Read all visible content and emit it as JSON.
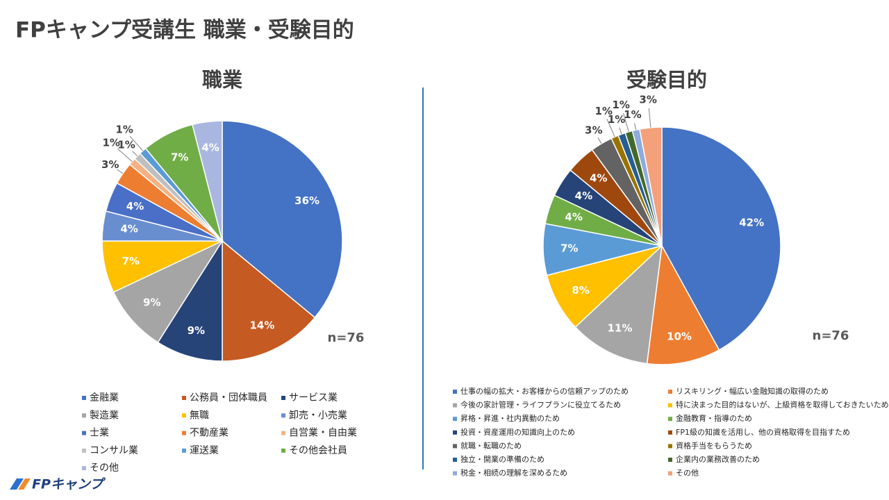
{
  "title": "FPキャンプ受講生 職業・受験目的",
  "logo": "FPキャンプ",
  "chart_data": [
    {
      "type": "pie",
      "title": "職業",
      "note": "n=76",
      "categories": [
        "金融業",
        "公務員・団体職員",
        "サービス業",
        "製造業",
        "無職",
        "卸売・小売業",
        "士業",
        "不動産業",
        "自営業・自由業",
        "コンサル業",
        "運送業",
        "その他会社員",
        "その他"
      ],
      "values": [
        36,
        14,
        9,
        9,
        7,
        4,
        4,
        3,
        1,
        1,
        1,
        7,
        4
      ],
      "value_labels": [
        "36%",
        "14%",
        "9%",
        "9%",
        "7%",
        "4%",
        "4%",
        "3%",
        "1%",
        "1%",
        "1%",
        "7%",
        "4%"
      ],
      "colors": [
        "#4472c4",
        "#c55a22",
        "#264478",
        "#a5a5a5",
        "#ffc000",
        "#698ed0",
        "#4a6fc6",
        "#ed7d31",
        "#f4b183",
        "#bfbfbf",
        "#5b9bd5",
        "#70ad47",
        "#a9b7e0"
      ]
    },
    {
      "type": "pie",
      "title": "受験目的",
      "note": "n=76",
      "categories": [
        "仕事の幅の拡大・お客様からの信頼アップのため",
        "リスキリング・幅広い金融知識の取得のため",
        "今後の家計管理・ライフプランに役立てるため",
        "特に決まった目的はないが、上級資格を取得しておきたいため",
        "昇格・昇進・社内異動のため",
        "金融教育・指導のため",
        "投資・資産運用の知識向上のため",
        "FP1級の知識を活用し、他の資格取得を目指すため",
        "就職・転職のため",
        "資格手当をもらうため",
        "独立・開業の準備のため",
        "企業内の業務改善のため",
        "税金・相続の理解を深めるため",
        "その他"
      ],
      "values": [
        42,
        10,
        11,
        8,
        7,
        4,
        4,
        4,
        3,
        1,
        1,
        1,
        1,
        3
      ],
      "value_labels": [
        "42%",
        "10%",
        "11%",
        "8%",
        "7%",
        "4%",
        "4%",
        "4%",
        "3%",
        "1%",
        "1%",
        "1%",
        "1%",
        "3%"
      ],
      "colors": [
        "#4472c4",
        "#ed7d31",
        "#a5a5a5",
        "#ffc000",
        "#5b9bd5",
        "#70ad47",
        "#264478",
        "#9e480e",
        "#636363",
        "#997300",
        "#255e91",
        "#43682b",
        "#8faadc",
        "#f4a07a"
      ]
    }
  ]
}
